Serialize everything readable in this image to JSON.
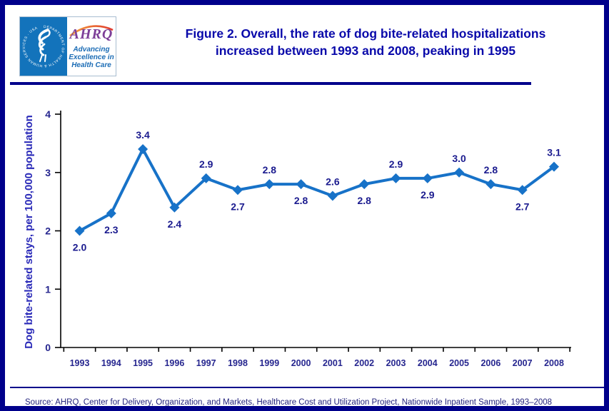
{
  "header": {
    "title_line1": "Figure 2. Overall, the rate of dog bite-related hospitalizations",
    "title_line2": "increased between 1993 and 2008, peaking in 1995"
  },
  "logo": {
    "ring_text": "DEPARTMENT OF HEALTH & HUMAN SERVICES · USA",
    "acronym": "AHRQ",
    "tagline_line1": "Advancing",
    "tagline_line2": "Excellence in",
    "tagline_line3": "Health Care"
  },
  "chart_data": {
    "type": "line",
    "title": "Figure 2. Overall, the rate of dog bite-related hospitalizations increased between 1993 and 2008, peaking in 1995",
    "categories": [
      "1993",
      "1994",
      "1995",
      "1996",
      "1997",
      "1998",
      "1999",
      "2000",
      "2001",
      "2002",
      "2003",
      "2004",
      "2005",
      "2006",
      "2007",
      "2008"
    ],
    "values": [
      2.0,
      2.3,
      3.4,
      2.4,
      2.9,
      2.7,
      2.8,
      2.8,
      2.6,
      2.8,
      2.9,
      2.9,
      3.0,
      2.8,
      2.7,
      3.1
    ],
    "label_positions": [
      "below",
      "below",
      "above",
      "below",
      "above",
      "below",
      "above",
      "below",
      "above",
      "below",
      "above",
      "below",
      "above",
      "above",
      "below",
      "above"
    ],
    "xlabel": "",
    "ylabel": "Dog bite-related stays, per 100,000 population",
    "ylim": [
      0,
      4
    ],
    "yticks": [
      0,
      1,
      2,
      3,
      4
    ],
    "grid": false,
    "legend": false,
    "marker": "diamond",
    "line_color": "#1772C8",
    "label_color": "#1B1B8F",
    "axis_text_color": "#26268F",
    "axis_line_color": "#000000",
    "ylabel_color": "#2929B8"
  },
  "footer": {
    "source": "Source: AHRQ, Center for Delivery, Organization, and Markets, Healthcare Cost and Utilization Project, Nationwide Inpatient Sample, 1993–2008"
  },
  "colors": {
    "page_border": "#00008B",
    "title_text": "#0909AA",
    "hhs_panel_blue": "#1373BB",
    "ahrq_purple": "#7D3F98",
    "tagline_blue": "#1B6CB5"
  }
}
